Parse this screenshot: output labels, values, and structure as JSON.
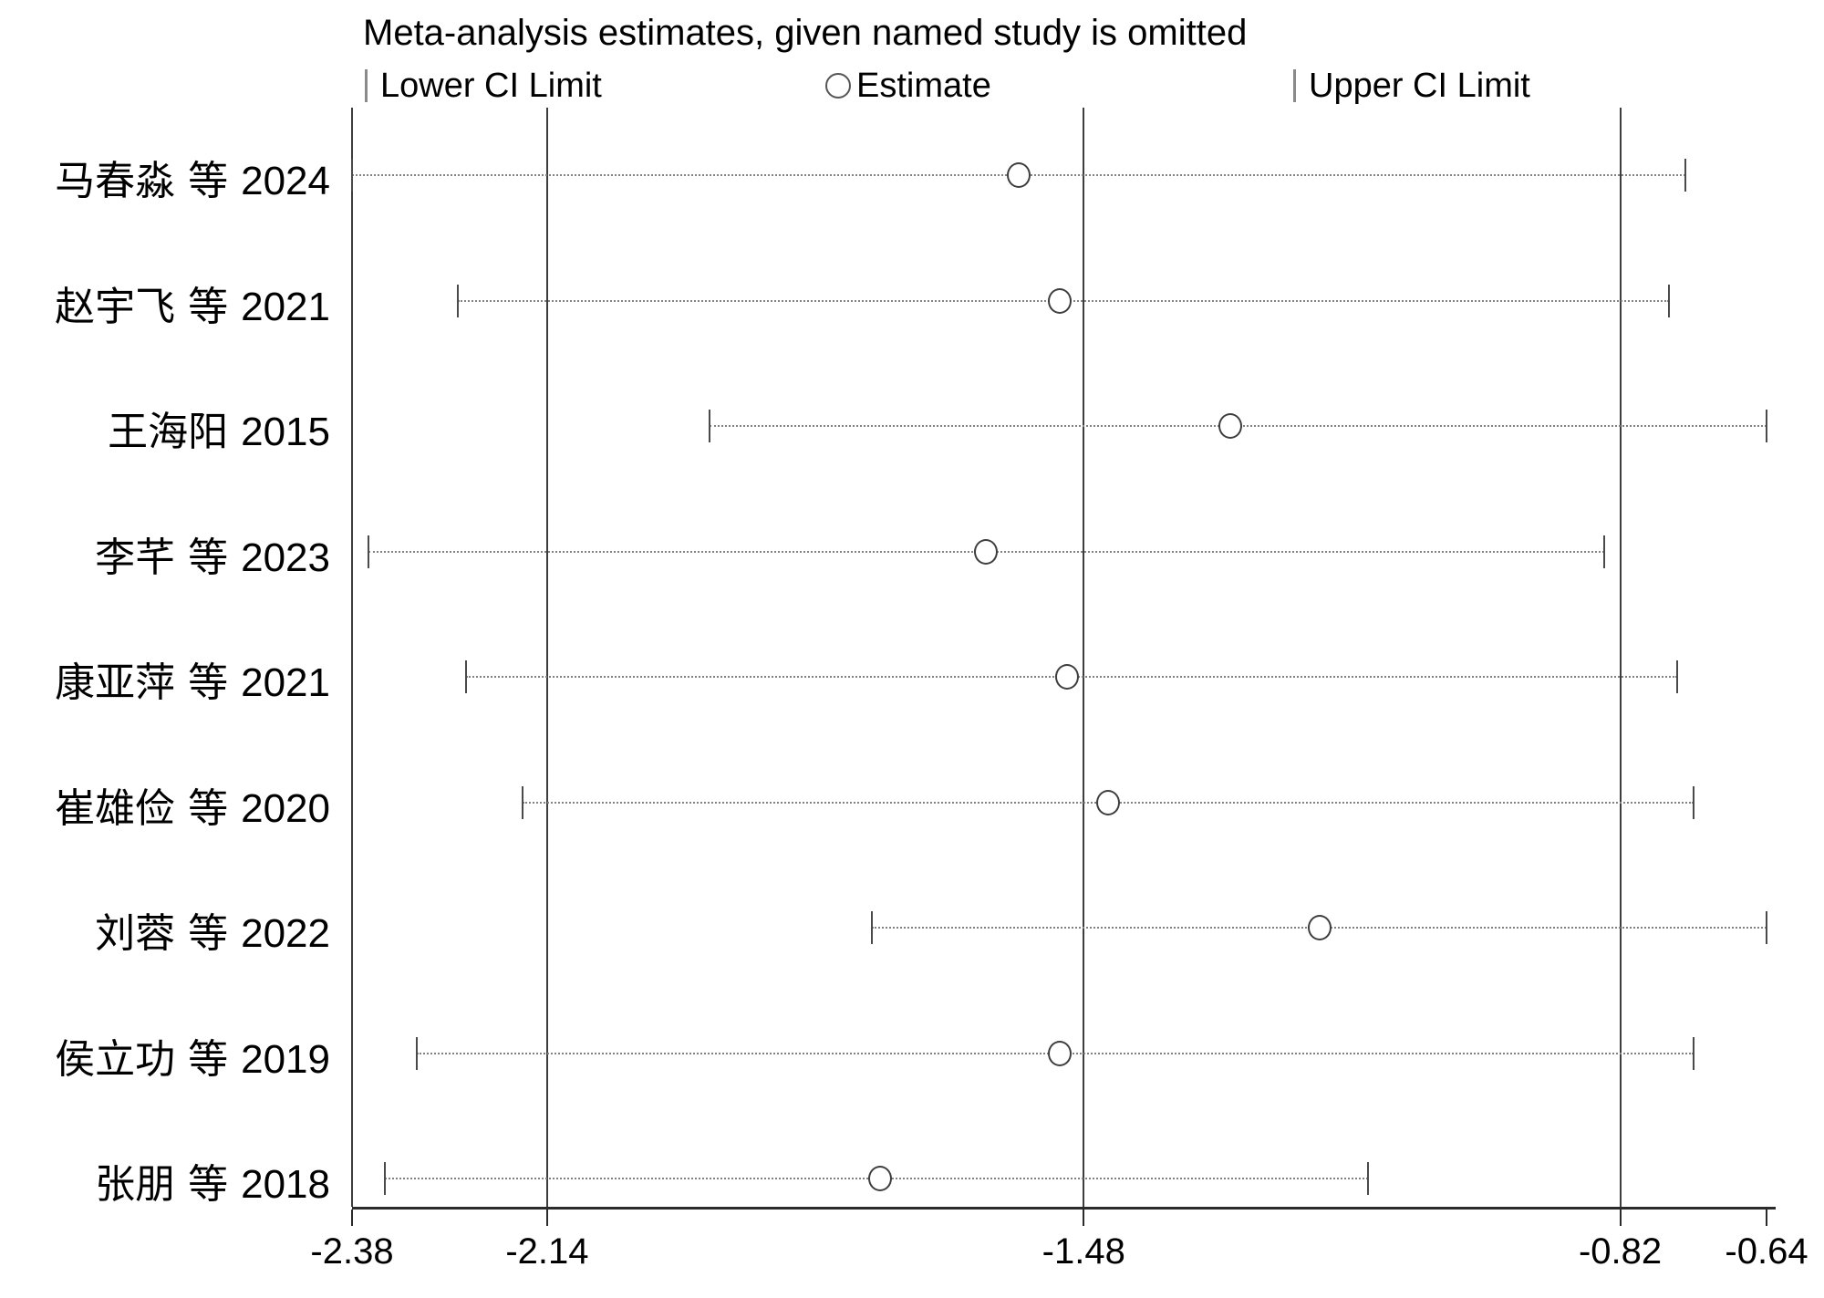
{
  "title": "Meta-analysis estimates, given named study is omitted",
  "legend": {
    "lower_label": "Lower CI Limit",
    "estimate_label": "Estimate",
    "upper_label": "Upper CI Limit"
  },
  "colors": {
    "background": "#ffffff",
    "text": "#000000",
    "reference_line": "#3d3d3d",
    "dotted_ci_line": "#828282",
    "marker_outline": "#3d3d3d"
  },
  "chart_data": {
    "type": "scatter",
    "subtype": "leave-one-out-meta-analysis-forest",
    "title": "Meta-analysis estimates, given named study is omitted",
    "xlabel": "",
    "ylabel": "",
    "grid": false,
    "xlim": [
      -2.38,
      -0.64
    ],
    "x_tick_values": [
      -2.38,
      -2.14,
      -1.48,
      -0.82,
      -0.64
    ],
    "x_tick_labels": [
      "-2.38",
      "-2.14",
      "-1.48",
      "-0.82",
      "-0.64"
    ],
    "reference_line_values": [
      -2.38,
      -2.14,
      -1.48,
      -0.82
    ],
    "legend_position": "top",
    "studies": [
      {
        "name": "马春淼 等",
        "year": "2024",
        "lower": -2.38,
        "estimate": -1.56,
        "upper": -0.74
      },
      {
        "name": "赵宇飞 等",
        "year": "2021",
        "lower": -2.25,
        "estimate": -1.51,
        "upper": -0.76
      },
      {
        "name": "王海阳",
        "year": "2015",
        "lower": -1.94,
        "estimate": -1.3,
        "upper": -0.64
      },
      {
        "name": "李芊 等",
        "year": "2023",
        "lower": -2.36,
        "estimate": -1.6,
        "upper": -0.84
      },
      {
        "name": "康亚萍 等",
        "year": "2021",
        "lower": -2.24,
        "estimate": -1.5,
        "upper": -0.75
      },
      {
        "name": "崔雄俭 等",
        "year": "2020",
        "lower": -2.17,
        "estimate": -1.45,
        "upper": -0.73
      },
      {
        "name": "刘蓉 等",
        "year": "2022",
        "lower": -1.74,
        "estimate": -1.19,
        "upper": -0.64
      },
      {
        "name": "侯立功 等",
        "year": "2019",
        "lower": -2.3,
        "estimate": -1.51,
        "upper": -0.73
      },
      {
        "name": "张朋 等",
        "year": "2018",
        "lower": -2.34,
        "estimate": -1.73,
        "upper": -1.13
      }
    ]
  }
}
